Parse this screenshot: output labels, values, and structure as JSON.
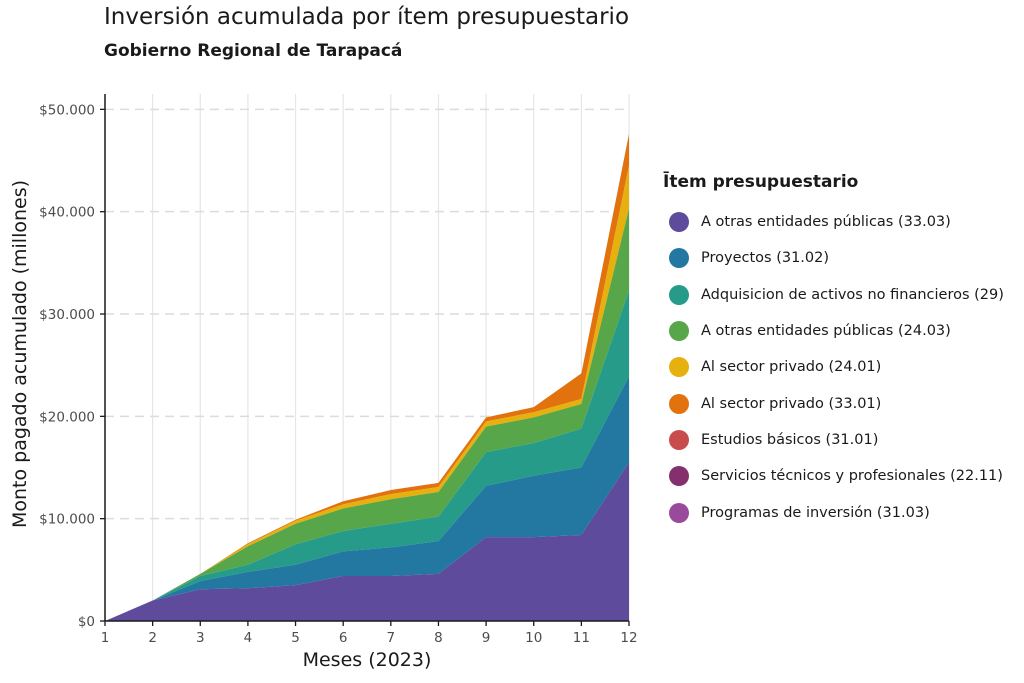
{
  "chart_data": {
    "type": "area",
    "stacked": true,
    "title": "Inversión acumulada por ítem presupuestario",
    "subtitle": "Gobierno Regional de Tarapacá",
    "xlabel": "Meses (2023)",
    "ylabel": "Monto pagado acumulado (millones)",
    "x": [
      1,
      2,
      3,
      4,
      5,
      6,
      7,
      8,
      9,
      10,
      11,
      12
    ],
    "x_tick_labels": [
      "1",
      "2",
      "3",
      "4",
      "5",
      "6",
      "7",
      "8",
      "9",
      "10",
      "11",
      "12"
    ],
    "xlim": [
      1,
      12
    ],
    "ylim": [
      0,
      51500
    ],
    "y_ticks": [
      0,
      10000,
      20000,
      30000,
      40000,
      50000
    ],
    "y_tick_labels": [
      "$0",
      "$10.000",
      "$20.000",
      "$30.000",
      "$40.000",
      "$50.000"
    ],
    "grid": true,
    "legend_title": "Ītem presupuestario",
    "legend_position": "right",
    "series": [
      {
        "name": "A otras entidades públicas (33.03)",
        "color": "#5f4b9b",
        "values": [
          0,
          2000,
          3100,
          3200,
          3500,
          4400,
          4400,
          4600,
          8200,
          8200,
          8400,
          15500
        ]
      },
      {
        "name": "Proyectos (31.02)",
        "color": "#2278a0",
        "values": [
          0,
          0,
          800,
          1600,
          2000,
          2400,
          2800,
          3200,
          5000,
          6000,
          6600,
          8400
        ]
      },
      {
        "name": "Adquisicion de activos no financieros (29)",
        "color": "#269b8a",
        "values": [
          0,
          0,
          500,
          700,
          2000,
          2000,
          2300,
          2400,
          3300,
          3200,
          3800,
          8400
        ]
      },
      {
        "name": "A otras entidades públicas (24.03)",
        "color": "#57a64a",
        "values": [
          0,
          0,
          200,
          1800,
          2000,
          2200,
          2400,
          2400,
          2500,
          2500,
          2400,
          8000
        ]
      },
      {
        "name": "Al sector privado (24.01)",
        "color": "#e6b00e",
        "values": [
          0,
          0,
          0,
          200,
          300,
          400,
          500,
          500,
          500,
          500,
          500,
          4200
        ]
      },
      {
        "name": "Al sector privado (33.01)",
        "color": "#e2720e",
        "values": [
          0,
          0,
          0,
          100,
          100,
          300,
          400,
          400,
          400,
          500,
          2500,
          3100
        ]
      },
      {
        "name": "Estudios básicos (31.01)",
        "color": "#c94c4c",
        "values": [
          0,
          0,
          0,
          0,
          0,
          0,
          0,
          0,
          0,
          0,
          0,
          0
        ]
      },
      {
        "name": "Servicios técnicos y profesionales (22.11)",
        "color": "#85306e",
        "values": [
          0,
          0,
          0,
          0,
          0,
          0,
          0,
          0,
          0,
          0,
          0,
          0
        ]
      },
      {
        "name": "Programas de inversión (31.03)",
        "color": "#9a4a9a",
        "values": [
          0,
          0,
          0,
          0,
          0,
          0,
          0,
          0,
          0,
          0,
          0,
          0
        ]
      }
    ]
  }
}
